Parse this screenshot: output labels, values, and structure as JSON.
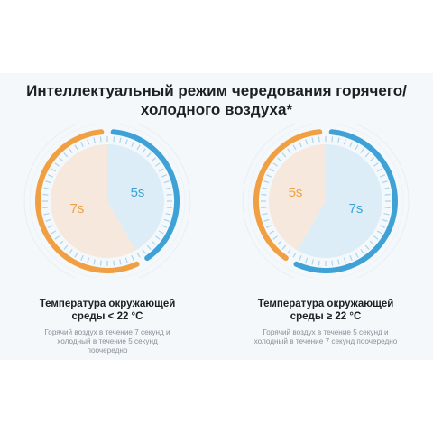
{
  "title": {
    "line1": "Интеллектуальный режим чередования горячего/",
    "line2": "холодного воздуха*"
  },
  "colors": {
    "warm": "#f0a043",
    "warm_fill": "#f6e8dc",
    "cool": "#3ea2d6",
    "cool_fill": "#dcedf8",
    "ticks": "#a9d4ee"
  },
  "modes": [
    {
      "warm_seconds": 7,
      "cool_seconds": 5,
      "warm_label": "7s",
      "cool_label": "5s",
      "heading_line1": "Температура окружающей",
      "heading_line2": "среды < 22 °C",
      "desc_line1": "Горячий воздух в течение 7 секунд и",
      "desc_line2": "холодный в течение 5 секунд",
      "desc_line3": "поочередно"
    },
    {
      "warm_seconds": 5,
      "cool_seconds": 7,
      "warm_label": "5s",
      "cool_label": "7s",
      "heading_line1": "Температура окружающей",
      "heading_line2": "среды ≥ 22 °C",
      "desc_line1": "Горячий воздух в течение 5 секунд и",
      "desc_line2": "холодный в течение 7 секунд поочередно",
      "desc_line3": ""
    }
  ]
}
